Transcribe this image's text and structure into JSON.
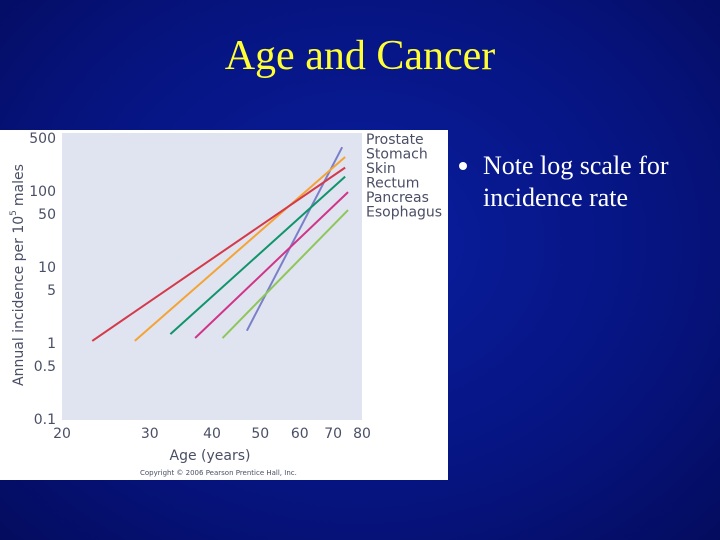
{
  "slide": {
    "title": "Age and Cancer",
    "bullets": [
      "Note log scale for incidence rate"
    ]
  },
  "chart_data": {
    "type": "line",
    "xlabel": "Age (years)",
    "ylabel": "Annual incidence per 10",
    "ylabel_sup": "5",
    "ylabel_end": "males",
    "xscale": "log",
    "yscale": "log",
    "xlim": [
      20,
      80
    ],
    "ylim": [
      0.1,
      500
    ],
    "xticks": [
      20,
      30,
      40,
      50,
      60,
      70,
      80
    ],
    "yticks": [
      500,
      100,
      50,
      10,
      5,
      1,
      0.5,
      0.1
    ],
    "series": [
      {
        "name": "Prostate",
        "color": "#7a7fc8",
        "x": [
          47,
          73
        ],
        "values": [
          1.5,
          390
        ]
      },
      {
        "name": "Stomach",
        "color": "#f5a334",
        "x": [
          28,
          74
        ],
        "values": [
          1.1,
          290
        ]
      },
      {
        "name": "Skin",
        "color": "#d43a4a",
        "x": [
          23,
          74
        ],
        "values": [
          1.1,
          210
        ]
      },
      {
        "name": "Rectum",
        "color": "#10946a",
        "x": [
          33,
          74
        ],
        "values": [
          1.35,
          160
        ]
      },
      {
        "name": "Pancreas",
        "color": "#d0358a",
        "x": [
          37,
          75
        ],
        "values": [
          1.2,
          100
        ]
      },
      {
        "name": "Esophagus",
        "color": "#8fc65a",
        "x": [
          42,
          75
        ],
        "values": [
          1.2,
          58
        ]
      }
    ],
    "copyright": "Copyright © 2006 Pearson Prentice Hall, Inc."
  }
}
